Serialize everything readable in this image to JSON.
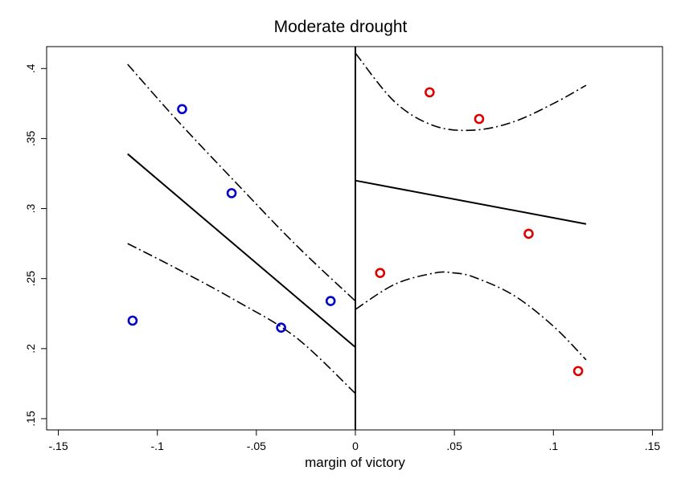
{
  "chart_data": {
    "type": "scatter",
    "title": "Moderate drought",
    "xlabel": "margin of victory",
    "ylabel": "",
    "xlim": [
      -0.15,
      0.15
    ],
    "ylim": [
      0.15,
      0.41
    ],
    "x_ticks": [
      {
        "value": -0.15,
        "label": "-.15"
      },
      {
        "value": -0.1,
        "label": "-.1"
      },
      {
        "value": -0.05,
        "label": "-.05"
      },
      {
        "value": 0,
        "label": "0"
      },
      {
        "value": 0.05,
        "label": ".05"
      },
      {
        "value": 0.1,
        "label": ".1"
      },
      {
        "value": 0.15,
        "label": ".15"
      }
    ],
    "y_ticks": [
      {
        "value": 0.15,
        "label": ".15"
      },
      {
        "value": 0.2,
        "label": ".2"
      },
      {
        "value": 0.25,
        "label": ".25"
      },
      {
        "value": 0.3,
        "label": ".3"
      },
      {
        "value": 0.35,
        "label": ".35"
      },
      {
        "value": 0.4,
        "label": ".4"
      }
    ],
    "cutoff": 0,
    "points_left": {
      "color": "#0000cc",
      "x": [
        -0.1125,
        -0.0875,
        -0.0625,
        -0.0375,
        -0.0125
      ],
      "y": [
        0.22,
        0.371,
        0.311,
        0.215,
        0.234
      ]
    },
    "points_right": {
      "color": "#dd0000",
      "x": [
        0.0125,
        0.0375,
        0.0625,
        0.0875,
        0.1125
      ],
      "y": [
        0.254,
        0.383,
        0.364,
        0.282,
        0.184
      ]
    },
    "fit_left": {
      "x": [
        -0.115,
        0
      ],
      "y": [
        0.339,
        0.201
      ]
    },
    "fit_right": {
      "x": [
        0,
        0.1165
      ],
      "y": [
        0.32,
        0.289
      ]
    },
    "ci_left_upper": {
      "x": [
        -0.115,
        -0.09,
        -0.06,
        -0.03,
        0
      ],
      "y": [
        0.403,
        0.363,
        0.318,
        0.274,
        0.234
      ]
    },
    "ci_left_lower": {
      "x": [
        -0.115,
        -0.09,
        -0.06,
        -0.03,
        0
      ],
      "y": [
        0.275,
        0.257,
        0.234,
        0.208,
        0.168
      ]
    },
    "ci_right_upper": {
      "x": [
        0,
        0.02,
        0.04,
        0.06,
        0.08,
        0.1,
        0.1165
      ],
      "y": [
        0.411,
        0.376,
        0.359,
        0.356,
        0.362,
        0.375,
        0.388
      ]
    },
    "ci_right_lower": {
      "x": [
        0,
        0.02,
        0.04,
        0.05,
        0.06,
        0.08,
        0.1,
        0.1165
      ],
      "y": [
        0.228,
        0.246,
        0.254,
        0.254,
        0.251,
        0.238,
        0.216,
        0.192
      ]
    },
    "grid": false,
    "legend": "none"
  }
}
